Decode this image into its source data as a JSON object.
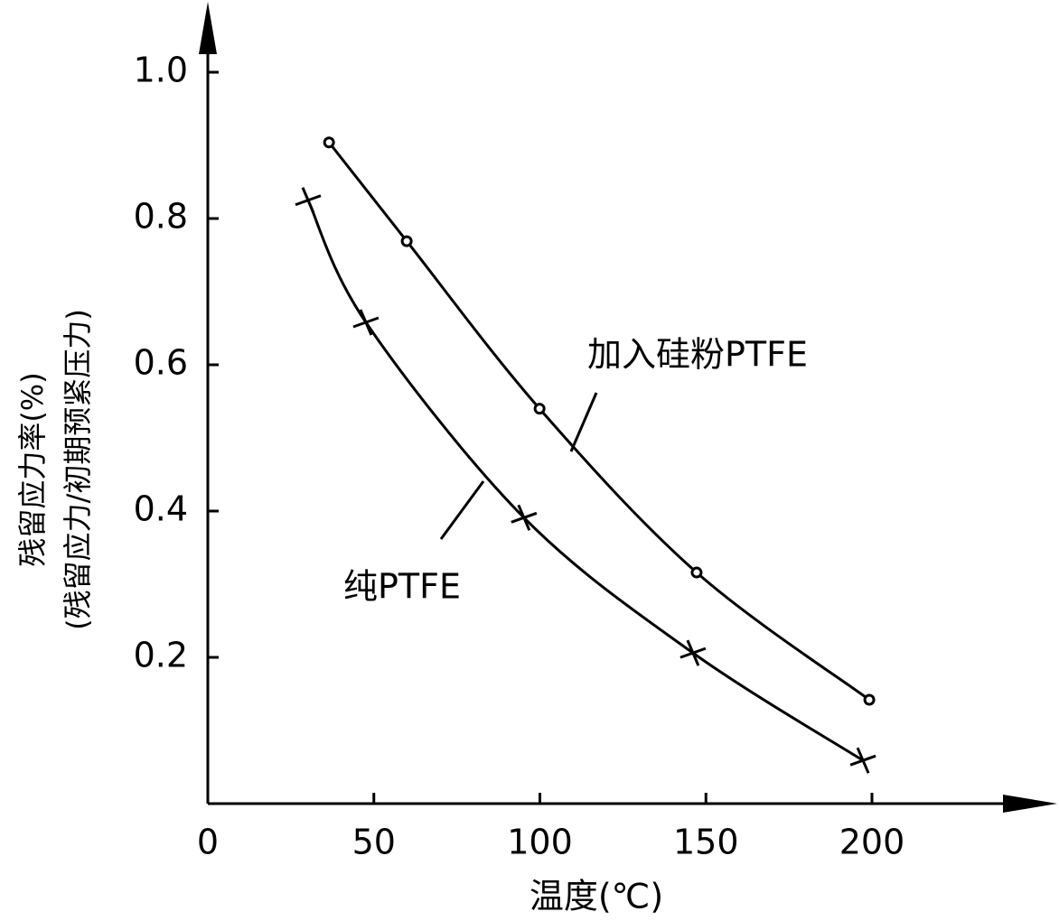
{
  "chart_data": {
    "type": "line",
    "xlabel": "温度(℃)",
    "ylabel": [
      "残留应力率(%)",
      "(残留应力/初期预紧压力)"
    ],
    "xlim": [
      0,
      255
    ],
    "ylim": [
      0,
      1.09
    ],
    "xticks": [
      0,
      50,
      100,
      150,
      200
    ],
    "yticks": [
      0.2,
      0.4,
      0.6,
      0.8,
      {
        "value": 1,
        "label": "1.0"
      }
    ],
    "series": [
      {
        "name": "加入硅粉PTFE",
        "color": "#000000",
        "marker": "circle",
        "x": [
          36.5,
          59.9,
          99.9,
          147.2,
          199.2
        ],
        "values": [
          0.904,
          0.769,
          0.54,
          0.316,
          0.142
        ]
      },
      {
        "name": "纯PTFE",
        "color": "#000000",
        "marker": "star",
        "x": [
          30.2,
          47.6,
          95.2,
          146.1,
          197.3
        ],
        "values": [
          0.825,
          0.658,
          0.391,
          0.206,
          0.059
        ]
      }
    ]
  }
}
